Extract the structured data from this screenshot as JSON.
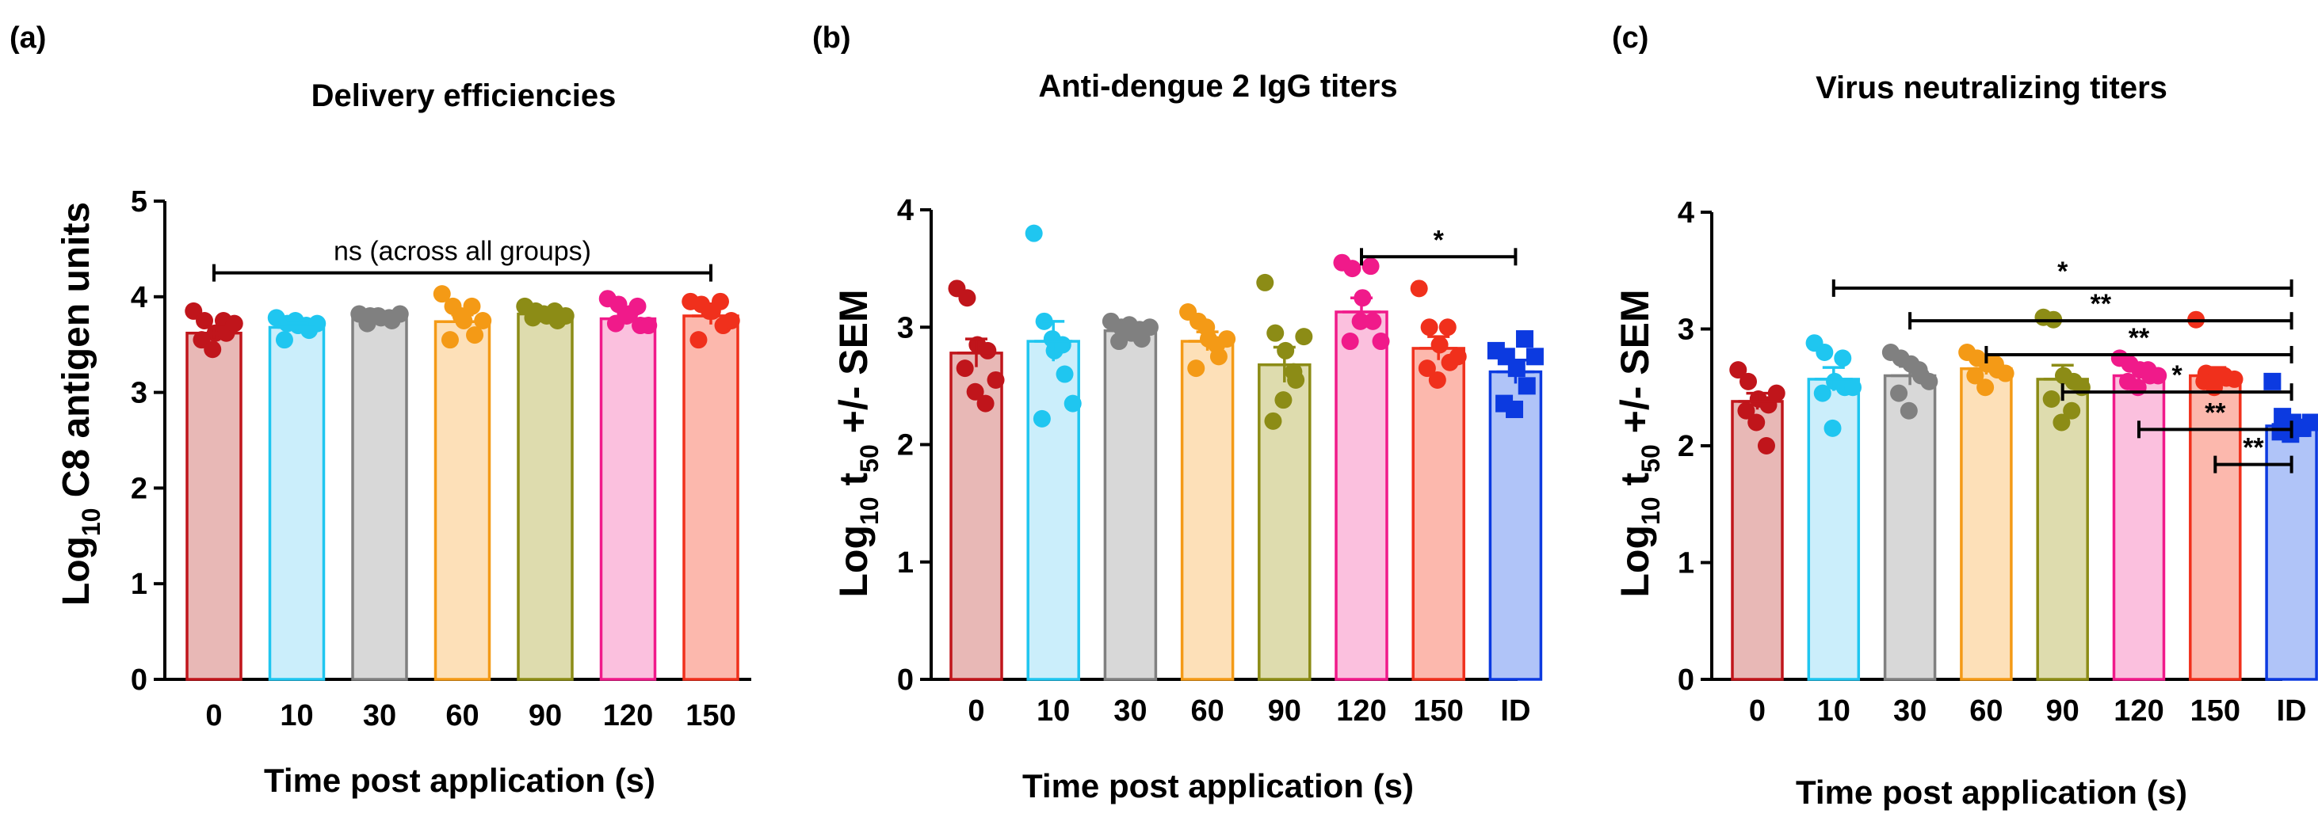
{
  "chart_data": [
    {
      "type": "bar",
      "panel_label": "(a)",
      "title": "Delivery efficiencies",
      "ylabel_main": "Log",
      "ylabel_sub": "10",
      "ylabel_rest": " C8 antigen units",
      "xlabel": "Time post application (s)",
      "categories": [
        "0",
        "10",
        "30",
        "60",
        "90",
        "120",
        "150"
      ],
      "colors": [
        "#c0151b",
        "#1fc6f0",
        "#808080",
        "#f49a16",
        "#8c8c16",
        "#f01a8a",
        "#f0301c"
      ],
      "fills": [
        "#e8b8b6",
        "#cbeefb",
        "#d8d8d8",
        "#fde0b8",
        "#dedcae",
        "#fbc0de",
        "#fcb8ad"
      ],
      "values": [
        3.62,
        3.68,
        3.78,
        3.74,
        3.82,
        3.77,
        3.8
      ],
      "sem": [
        0.06,
        0.05,
        0.03,
        0.07,
        0.03,
        0.05,
        0.09
      ],
      "points": [
        [
          3.85,
          3.75,
          3.62,
          3.62,
          3.55,
          3.45,
          3.75,
          3.72
        ],
        [
          3.78,
          3.72,
          3.7,
          3.65,
          3.55,
          3.75,
          3.7,
          3.72
        ],
        [
          3.82,
          3.8,
          3.78,
          3.75,
          3.72,
          3.8,
          3.78,
          3.82
        ],
        [
          4.03,
          3.9,
          3.75,
          3.6,
          3.55,
          3.8,
          3.9,
          3.75
        ],
        [
          3.9,
          3.85,
          3.8,
          3.75,
          3.78,
          3.82,
          3.85,
          3.8
        ],
        [
          3.98,
          3.92,
          3.82,
          3.7,
          3.72,
          3.8,
          3.9,
          3.7
        ],
        [
          3.95,
          3.92,
          3.85,
          3.7,
          3.55,
          3.85,
          3.95,
          3.75
        ]
      ],
      "ylim": [
        0,
        5
      ],
      "yticks": [
        "0",
        "1",
        "2",
        "3",
        "4",
        "5"
      ],
      "annotations": [
        {
          "from": "0",
          "to": "150",
          "y": 4.25,
          "label": "ns (across all groups)"
        }
      ]
    },
    {
      "type": "bar",
      "panel_label": "(b)",
      "title": "Anti-dengue 2 IgG titers",
      "ylabel_main": "Log",
      "ylabel_sub": "10",
      "ylabel_rest": " t",
      "ylabel_sub2": "50",
      "ylabel_end": " +/- SEM",
      "xlabel": "Time post application (s)",
      "categories": [
        "0",
        "10",
        "30",
        "60",
        "90",
        "120",
        "150",
        "ID"
      ],
      "colors": [
        "#c0151b",
        "#1fc6f0",
        "#808080",
        "#f49a16",
        "#8c8c16",
        "#f01a8a",
        "#f0301c",
        "#0c3ae0"
      ],
      "fills": [
        "#e8b8b6",
        "#cbeefb",
        "#d8d8d8",
        "#fde0b8",
        "#dedcae",
        "#fbc0de",
        "#fcb8ad",
        "#b0c4f8"
      ],
      "values": [
        2.78,
        2.88,
        2.97,
        2.88,
        2.68,
        3.13,
        2.82,
        2.62
      ],
      "sem": [
        0.12,
        0.17,
        0.04,
        0.08,
        0.15,
        0.12,
        0.1,
        0.1
      ],
      "points": [
        [
          3.33,
          3.25,
          2.85,
          2.8,
          2.65,
          2.45,
          2.35,
          2.55
        ],
        [
          3.8,
          3.05,
          2.8,
          2.6,
          2.22,
          2.9,
          2.85,
          2.35
        ],
        [
          3.05,
          3.0,
          2.95,
          2.9,
          2.88,
          3.02,
          2.98,
          3.0
        ],
        [
          3.13,
          3.05,
          2.9,
          2.75,
          2.65,
          3.0,
          2.85,
          2.9
        ],
        [
          3.38,
          2.95,
          2.8,
          2.55,
          2.2,
          2.38,
          2.62,
          2.92
        ],
        [
          3.55,
          3.5,
          3.25,
          3.05,
          2.88,
          3.05,
          3.52,
          2.88
        ],
        [
          3.33,
          3.0,
          2.85,
          2.7,
          2.65,
          2.55,
          3.0,
          2.75
        ],
        [
          2.8,
          2.75,
          2.65,
          2.5,
          2.35,
          2.3,
          2.9,
          2.75
        ]
      ],
      "ylim": [
        0,
        4
      ],
      "yticks": [
        "0",
        "1",
        "2",
        "3",
        "4"
      ],
      "annotations": [
        {
          "from": "120",
          "to": "ID",
          "y": 3.6,
          "label": "*"
        }
      ]
    },
    {
      "type": "bar",
      "panel_label": "(c)",
      "title": "Virus neutralizing titers",
      "ylabel_main": "Log",
      "ylabel_sub": "10",
      "ylabel_rest": " t",
      "ylabel_sub2": "50",
      "ylabel_end": " +/- SEM",
      "xlabel": "Time post application (s)",
      "categories": [
        "0",
        "10",
        "30",
        "60",
        "90",
        "120",
        "150",
        "ID"
      ],
      "colors": [
        "#c0151b",
        "#1fc6f0",
        "#808080",
        "#f49a16",
        "#8c8c16",
        "#f01a8a",
        "#f0301c",
        "#0c3ae0"
      ],
      "fills": [
        "#e8b8b6",
        "#cbeefb",
        "#d8d8d8",
        "#fde0b8",
        "#dedcae",
        "#fbc0de",
        "#fcb8ad",
        "#b0c4f8"
      ],
      "values": [
        2.38,
        2.57,
        2.6,
        2.66,
        2.57,
        2.6,
        2.6,
        2.17
      ],
      "sem": [
        0.07,
        0.1,
        0.08,
        0.05,
        0.12,
        0.05,
        0.07,
        0.05
      ],
      "points": [
        [
          2.65,
          2.55,
          2.4,
          2.35,
          2.3,
          2.2,
          2.0,
          2.45
        ],
        [
          2.88,
          2.8,
          2.55,
          2.5,
          2.45,
          2.15,
          2.75,
          2.5
        ],
        [
          2.8,
          2.75,
          2.7,
          2.6,
          2.45,
          2.3,
          2.65,
          2.55
        ],
        [
          2.8,
          2.75,
          2.7,
          2.65,
          2.6,
          2.5,
          2.7,
          2.62
        ],
        [
          3.1,
          3.08,
          2.6,
          2.55,
          2.4,
          2.2,
          2.3,
          2.5
        ],
        [
          2.75,
          2.7,
          2.65,
          2.6,
          2.55,
          2.5,
          2.65,
          2.6
        ],
        [
          3.08,
          2.62,
          2.6,
          2.58,
          2.55,
          2.5,
          2.6,
          2.57
        ],
        [
          2.55,
          2.25,
          2.2,
          2.15,
          2.12,
          2.1,
          2.15,
          2.2
        ]
      ],
      "ylim": [
        0,
        4
      ],
      "yticks": [
        "0",
        "1",
        "2",
        "3",
        "4"
      ],
      "annotations": [
        {
          "from": "10",
          "to": "ID",
          "y": 3.35,
          "label": "*"
        },
        {
          "from": "30",
          "to": "ID",
          "y": 3.07,
          "label": "**"
        },
        {
          "from": "60",
          "to": "ID",
          "y": 2.78,
          "label": "**"
        },
        {
          "from": "90",
          "to": "ID",
          "y": 2.46,
          "label": "*"
        },
        {
          "from": "120",
          "to": "ID",
          "y": 2.14,
          "label": "**"
        },
        {
          "from": "150",
          "to": "ID",
          "y": 1.84,
          "label": "**"
        }
      ]
    }
  ]
}
